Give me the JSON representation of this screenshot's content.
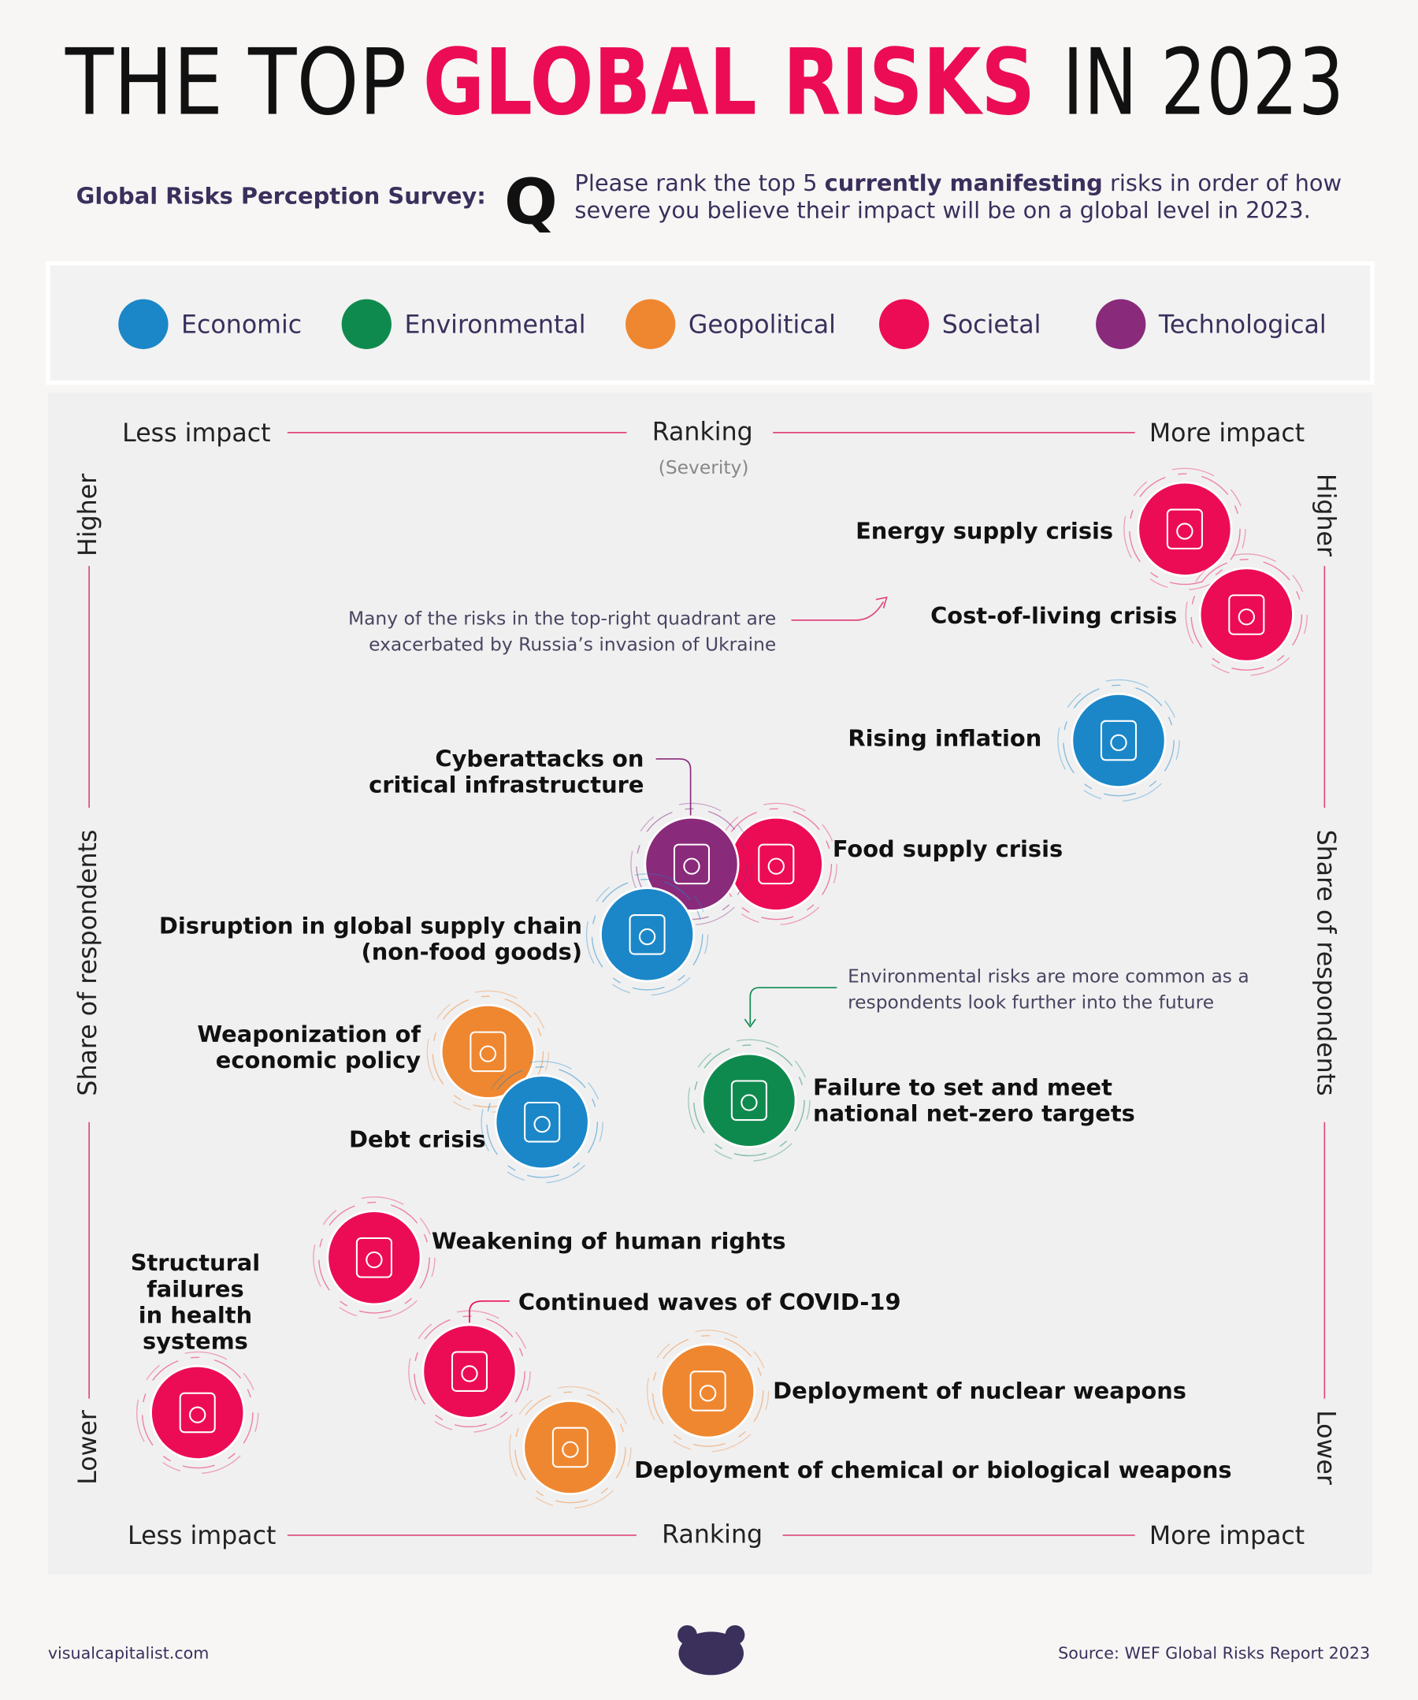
{
  "title": {
    "parts": [
      "THE TOP",
      "GLOBAL RISKS",
      "IN 2023"
    ]
  },
  "survey": {
    "label": "Global Risks Perception Survey:",
    "q": "Q",
    "question": [
      "Please rank the top 5 ",
      "currently manifesting",
      " risks in order of how",
      "severe you believe their impact will be on a global level in 2023."
    ]
  },
  "legend": [
    {
      "name": "Economic",
      "color": "#1b87c8"
    },
    {
      "name": "Environmental",
      "color": "#0f8a4e"
    },
    {
      "name": "Geopolitical",
      "color": "#ef8730"
    },
    {
      "name": "Societal",
      "color": "#ec0c55"
    },
    {
      "name": "Technological",
      "color": "#8a2a7a"
    }
  ],
  "axes": {
    "top": {
      "left": "Less impact",
      "title": "Ranking",
      "subtitle": "(Severity)",
      "right": "More impact"
    },
    "bottom": {
      "left": "Less impact",
      "title": "Ranking",
      "right": "More impact"
    },
    "left": {
      "high": "Higher",
      "title": "Share of respondents",
      "low": "Lower"
    },
    "right": {
      "high": "Higher",
      "title": "Share of respondents",
      "low": "Lower"
    }
  },
  "annotations": [
    {
      "lines": [
        "Many of the risks in the top-right quadrant are",
        "exacerbated by Russia’s invasion of Ukraine"
      ]
    },
    {
      "lines": [
        "Environmental risks are more common as a",
        "respondents look further into the future"
      ]
    }
  ],
  "risks": [
    {
      "lines": [
        "Energy supply crisis"
      ],
      "category": "Societal"
    },
    {
      "lines": [
        "Cost-of-living crisis"
      ],
      "category": "Societal"
    },
    {
      "lines": [
        "Rising inflation"
      ],
      "category": "Economic"
    },
    {
      "lines": [
        "Cyberattacks on",
        "critical infrastructure"
      ],
      "category": "Technological"
    },
    {
      "lines": [
        "Food supply crisis"
      ],
      "category": "Societal"
    },
    {
      "lines": [
        "Disruption in global supply chain",
        "(non-food goods)"
      ],
      "category": "Economic"
    },
    {
      "lines": [
        "Weaponization of",
        "economic policy"
      ],
      "category": "Geopolitical"
    },
    {
      "lines": [
        "Debt crisis"
      ],
      "category": "Economic"
    },
    {
      "lines": [
        "Failure to set and meet",
        "national net-zero targets"
      ],
      "category": "Environmental"
    },
    {
      "lines": [
        "Weakening of human rights"
      ],
      "category": "Societal"
    },
    {
      "lines": [
        "Structural",
        "failures",
        "in health",
        "systems"
      ],
      "category": "Societal"
    },
    {
      "lines": [
        "Continued waves of COVID-19"
      ],
      "category": "Societal"
    },
    {
      "lines": [
        "Deployment of nuclear weapons"
      ],
      "category": "Geopolitical"
    },
    {
      "lines": [
        "Deployment of chemical or biological weapons"
      ],
      "category": "Geopolitical"
    }
  ],
  "footer": {
    "site": "visualcapitalist.com",
    "source": "Source: WEF Global Risks Report 2023"
  }
}
